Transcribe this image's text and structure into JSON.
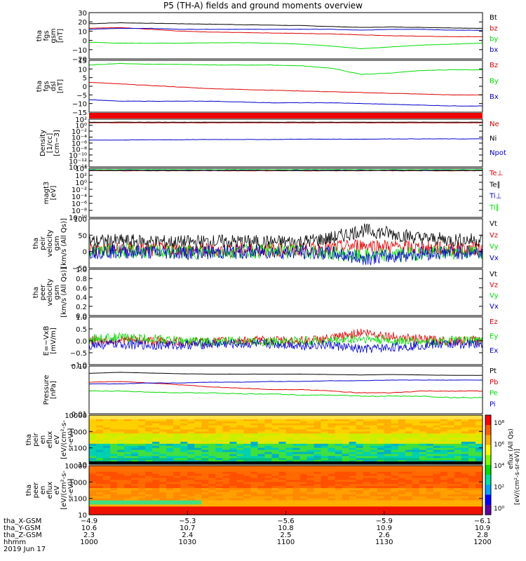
{
  "title": "P5 (TH-A) fields and ground moments overview",
  "colors": {
    "black": "#000000",
    "red": "#dd0000",
    "green": "#00dd00",
    "blue": "#0000cc"
  },
  "chart_data": [
    {
      "type": "line",
      "id": "fgs_gsm",
      "ylabel": [
        "tha",
        "fgs",
        "gsm",
        "[nT]"
      ],
      "ylim": [
        -20,
        30
      ],
      "yticks": [
        "30",
        "20",
        "10",
        "0",
        "−10",
        "−20"
      ],
      "series": [
        {
          "name": "Bt",
          "color": "black",
          "values": [
            18,
            19,
            18.5,
            18,
            17.5,
            17,
            16.5,
            16,
            15,
            14,
            14.5,
            14,
            13.5,
            13
          ]
        },
        {
          "name": "bz",
          "color": "red",
          "values": [
            13,
            14,
            12,
            10,
            9,
            8.5,
            8,
            7.5,
            7,
            6,
            5,
            4.5,
            4,
            4
          ]
        },
        {
          "name": "by",
          "color": "green",
          "values": [
            -2,
            -3,
            -3,
            -3,
            -2.5,
            -2.5,
            -3,
            -4,
            -6,
            -9,
            -7,
            -5,
            -4,
            -3
          ]
        },
        {
          "name": "bx",
          "color": "blue",
          "values": [
            12,
            13,
            13,
            12,
            12,
            12,
            12,
            12,
            12,
            11,
            12,
            12,
            11,
            11
          ]
        }
      ]
    },
    {
      "type": "line",
      "id": "fgs_dsl",
      "ylabel": [
        "tha",
        "fgs",
        "dsl",
        "[nT]"
      ],
      "ylim": [
        -17,
        16
      ],
      "yticks": [
        "15",
        "10",
        "5",
        "0",
        "−5",
        "−10",
        "−15"
      ],
      "series": [
        {
          "name": "Bz",
          "color": "red",
          "values": [
            2,
            1,
            0,
            -1,
            -2,
            -2.5,
            -3,
            -3.5,
            -4,
            -4.5,
            -5,
            -5.5,
            -6,
            -6
          ]
        },
        {
          "name": "By",
          "color": "green",
          "values": [
            13,
            14,
            13.5,
            13.5,
            13,
            13,
            13,
            12.5,
            11,
            7,
            8,
            9.5,
            10,
            10
          ]
        },
        {
          "name": "Bx",
          "color": "blue",
          "values": [
            -9,
            -10,
            -10,
            -10,
            -10,
            -10.5,
            -11,
            -11,
            -11,
            -11.5,
            -12,
            -12.5,
            -13,
            -13
          ]
        }
      ]
    },
    {
      "type": "line",
      "id": "density",
      "ylabel": [
        "Density",
        "[1/cc]",
        "[cm−3]"
      ],
      "ylim": [
        -14,
        2
      ],
      "ylog": true,
      "yticks": [
        "10²",
        "10⁰",
        "10⁻²",
        "10⁻⁴",
        "10⁻⁶",
        "10⁻⁸",
        "10⁻¹⁰",
        "10⁻¹²",
        "10⁻¹⁴"
      ],
      "series": [
        {
          "name": "Ne",
          "color": "red",
          "values": [
            0.8,
            0.8,
            0.8,
            0.8,
            0.8,
            0.8,
            0.8,
            0.8,
            0.8,
            0.8,
            0.8,
            0.8,
            0.8,
            0.8
          ]
        },
        {
          "name": "Ni",
          "color": "black",
          "values": [
            1,
            1,
            1,
            1,
            1,
            1,
            1,
            1,
            1,
            1,
            1,
            1,
            1,
            1
          ]
        },
        {
          "name": "Npot",
          "color": "blue",
          "values": [
            -5,
            -5,
            -4.9,
            -4.9,
            -4.8,
            -4.8,
            -4.8,
            -4.7,
            -4.7,
            -4.7,
            -4.6,
            -4.6,
            -4.6,
            -4.6
          ]
        }
      ]
    },
    {
      "type": "line",
      "id": "temperature",
      "ylabel": [
        "magt3",
        "[eV]"
      ],
      "ylim": [
        -10,
        4
      ],
      "ylog": true,
      "yticks": [
        "10⁴",
        "10²",
        "10⁰",
        "10⁻²",
        "10⁻⁴",
        "10⁻⁶",
        "10⁻⁸",
        "10⁻¹⁰"
      ],
      "series": [
        {
          "name": "Te⊥",
          "color": "red",
          "values": [
            3.3,
            3.3,
            3.3,
            3.3,
            3.3,
            3.3,
            3.3,
            3.3,
            3.3,
            3.3,
            3.3,
            3.3,
            3.3,
            3.3
          ]
        },
        {
          "name": "Te∥",
          "color": "black",
          "values": [
            3.4,
            3.4,
            3.4,
            3.4,
            3.4,
            3.4,
            3.4,
            3.4,
            3.4,
            3.4,
            3.4,
            3.4,
            3.4,
            3.4
          ]
        },
        {
          "name": "Ti⊥",
          "color": "blue",
          "values": [
            3.5,
            3.5,
            3.5,
            3.5,
            3.5,
            3.5,
            3.5,
            3.5,
            3.5,
            3.5,
            3.5,
            3.5,
            3.5,
            3.5
          ]
        },
        {
          "name": "Ti∥",
          "color": "green",
          "values": [
            3.6,
            3.6,
            3.6,
            3.6,
            3.6,
            3.6,
            3.6,
            3.6,
            3.6,
            3.6,
            3.6,
            3.6,
            3.6,
            3.6
          ]
        }
      ]
    },
    {
      "type": "line",
      "id": "peir_velocity",
      "ylabel": [
        "tha",
        "peir",
        "velocity",
        "gsm",
        "[km/s (All Qs)]"
      ],
      "ylim": [
        -50,
        100
      ],
      "yticks": [
        "100",
        "50",
        "0",
        "−50"
      ],
      "series": [
        {
          "name": "Vt",
          "color": "black",
          "values": [
            30,
            32,
            30,
            28,
            30,
            30,
            28,
            30,
            40,
            65,
            55,
            40,
            35,
            35
          ]
        },
        {
          "name": "Vz",
          "color": "red",
          "values": [
            5,
            6,
            5,
            5,
            4,
            5,
            5,
            5,
            10,
            20,
            15,
            10,
            8,
            8
          ]
        },
        {
          "name": "Vy",
          "color": "green",
          "values": [
            2,
            1,
            0,
            -1,
            -2,
            0,
            2,
            0,
            -5,
            -15,
            -10,
            -5,
            -2,
            -2
          ]
        },
        {
          "name": "Vx",
          "color": "blue",
          "values": [
            0,
            0,
            -2,
            -3,
            -3,
            -2,
            -1,
            -2,
            -5,
            -20,
            -15,
            -5,
            -3,
            -2
          ]
        }
      ]
    },
    {
      "type": "line",
      "id": "peer_velocity",
      "ylabel": [
        "tha",
        "peer",
        "velocity",
        "gsm",
        "[km/s (All Qs)]"
      ],
      "ylim": [
        0,
        1
      ],
      "yticks": [
        "1.0",
        "0.8",
        "0.6",
        "0.4",
        "0.2",
        "0.0"
      ],
      "series": [
        {
          "name": "Vt",
          "color": "black",
          "values": []
        },
        {
          "name": "Vz",
          "color": "red",
          "values": []
        },
        {
          "name": "Vy",
          "color": "green",
          "values": []
        },
        {
          "name": "Vx",
          "color": "blue",
          "values": []
        }
      ]
    },
    {
      "type": "line",
      "id": "efield",
      "ylabel": [
        "E=−VxB",
        "[mV/m]"
      ],
      "ylim": [
        -1,
        1.2
      ],
      "yticks": [
        "1.0",
        "0.5",
        "0.0",
        "−0.5",
        "−1.0"
      ],
      "series": [
        {
          "name": "Ez",
          "color": "red",
          "values": [
            0.1,
            0.15,
            0.1,
            0.05,
            0.05,
            0.1,
            0.1,
            0.1,
            0.2,
            0.5,
            0.3,
            0.15,
            0.1,
            0.1
          ]
        },
        {
          "name": "Ey",
          "color": "green",
          "values": [
            0.2,
            0.25,
            0.2,
            0.1,
            0.05,
            0.1,
            0.05,
            0.1,
            0.1,
            0.2,
            0.1,
            0.05,
            0.1,
            0.1
          ]
        },
        {
          "name": "Ex",
          "color": "blue",
          "values": [
            -0.1,
            -0.05,
            -0.1,
            -0.1,
            -0.05,
            -0.05,
            -0.05,
            -0.1,
            -0.1,
            -0.3,
            -0.2,
            -0.1,
            -0.05,
            -0.05
          ]
        }
      ]
    },
    {
      "type": "line",
      "id": "pressure",
      "ylabel": [
        "Pressure",
        "[nPa]"
      ],
      "ylim": [
        0.01,
        0.6
      ],
      "ylog": true,
      "yticks": [
        "0.10",
        "0.01"
      ],
      "series": [
        {
          "name": "Pt",
          "color": "black",
          "values": [
            0.32,
            0.35,
            0.33,
            0.31,
            0.3,
            0.3,
            0.3,
            0.3,
            0.29,
            0.28,
            0.29,
            0.28,
            0.27,
            0.27
          ]
        },
        {
          "name": "Pb",
          "color": "red",
          "values": [
            0.15,
            0.16,
            0.14,
            0.12,
            0.1,
            0.09,
            0.08,
            0.08,
            0.07,
            0.06,
            0.06,
            0.07,
            0.07,
            0.07
          ]
        },
        {
          "name": "Pe",
          "color": "green",
          "values": [
            0.07,
            0.07,
            0.065,
            0.06,
            0.06,
            0.055,
            0.055,
            0.05,
            0.05,
            0.045,
            0.045,
            0.045,
            0.04,
            0.04
          ]
        },
        {
          "name": "Pi",
          "color": "blue",
          "values": [
            0.13,
            0.13,
            0.14,
            0.14,
            0.15,
            0.15,
            0.16,
            0.16,
            0.17,
            0.17,
            0.18,
            0.18,
            0.18,
            0.18
          ]
        }
      ]
    },
    {
      "type": "heatmap",
      "id": "peir_spec",
      "ylabel": [
        "tha",
        "peir",
        "en",
        "eflux",
        "eV",
        "[eV/(cm²-s-",
        "sr-eV)]"
      ],
      "yticks": [
        "10000",
        "1000",
        "100",
        "10"
      ],
      "ylim": [
        5,
        30000
      ],
      "ylog": true
    },
    {
      "type": "heatmap",
      "id": "peer_spec",
      "ylabel": [
        "tha",
        "peer",
        "en",
        "eflux",
        "eV",
        "[eV/(cm²-s-",
        "sr-eV)]"
      ],
      "yticks": [
        "10000",
        "1000",
        "100",
        "10"
      ],
      "ylim": [
        5,
        30000
      ],
      "ylog": true
    }
  ],
  "colorbar": {
    "ticks": [
      "10⁸",
      "10⁶",
      "10⁴",
      "10²",
      "10⁰"
    ],
    "label": "[eV/(cm²-s-sr-eV)]",
    "label2": "eflux (All Qs)"
  },
  "xaxis": {
    "rows": [
      {
        "label": "tha_X-GSM",
        "values": [
          "−4.9",
          "−5.3",
          "−5.6",
          "−5.9",
          "−6.1"
        ]
      },
      {
        "label": "tha_Y-GSM",
        "values": [
          "10.6",
          "10.7",
          "10.8",
          "10.9",
          "10.9"
        ]
      },
      {
        "label": "tha_Z-GSM",
        "values": [
          "2.3",
          "2.4",
          "2.5",
          "2.6",
          "2.8"
        ]
      },
      {
        "label": "hhmm",
        "values": [
          "1000",
          "1030",
          "1100",
          "1130",
          "1200"
        ]
      }
    ],
    "date": "2019 Jun 17"
  }
}
